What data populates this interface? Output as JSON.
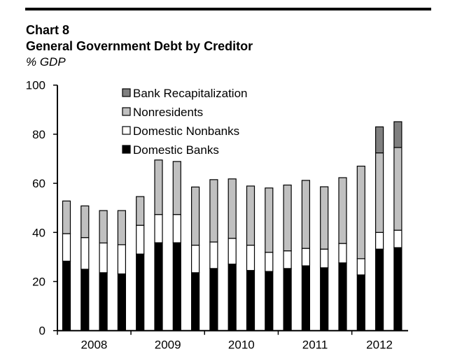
{
  "chart_data": {
    "type": "bar",
    "stacked": true,
    "label": "Chart 8",
    "title": "General Government Debt by Creditor",
    "subtitle": "% GDP",
    "xlabel": "",
    "ylabel": "",
    "ylim": [
      0,
      100
    ],
    "yticks": [
      0,
      20,
      40,
      60,
      80,
      100
    ],
    "year_labels": [
      "2008",
      "2009",
      "2010",
      "2011",
      "2012"
    ],
    "bars_per_year": [
      4,
      4,
      4,
      4,
      3
    ],
    "grid": false,
    "legend_placement": "top-center",
    "series": [
      {
        "name": "Domestic Banks",
        "color": "#000000",
        "values": [
          28.3,
          25,
          23.6,
          23.1,
          31.2,
          35.8,
          35.8,
          23.6,
          25.3,
          27.1,
          24.5,
          24.1,
          25.3,
          26.4,
          25.6,
          27.6,
          22.7,
          33.2,
          33.8
        ]
      },
      {
        "name": "Domestic Nonbanks",
        "color": "#ffffff",
        "values": [
          11.2,
          12.9,
          12.1,
          11.9,
          11.7,
          11.5,
          11.5,
          11.2,
          10.8,
          10.5,
          10.3,
          7.8,
          7.2,
          7.1,
          7.6,
          7.9,
          6.6,
          6.8,
          7.1
        ]
      },
      {
        "name": "Nonresidents",
        "color": "#c0c0c0",
        "values": [
          13.3,
          12.9,
          13.2,
          13.9,
          11.7,
          22.2,
          21.6,
          23.7,
          25.4,
          24.2,
          24.1,
          26.2,
          26.8,
          27.7,
          25.4,
          26.8,
          37.7,
          32.4,
          33.7
        ]
      },
      {
        "name": "Bank Recapitalization",
        "color": "#808080",
        "values": [
          0,
          0,
          0,
          0,
          0,
          0,
          0,
          0,
          0,
          0,
          0,
          0,
          0,
          0,
          0,
          0,
          0,
          10.6,
          10.5
        ]
      }
    ],
    "legend_order": [
      "Bank Recapitalization",
      "Nonresidents",
      "Domestic Nonbanks",
      "Domestic Banks"
    ]
  }
}
